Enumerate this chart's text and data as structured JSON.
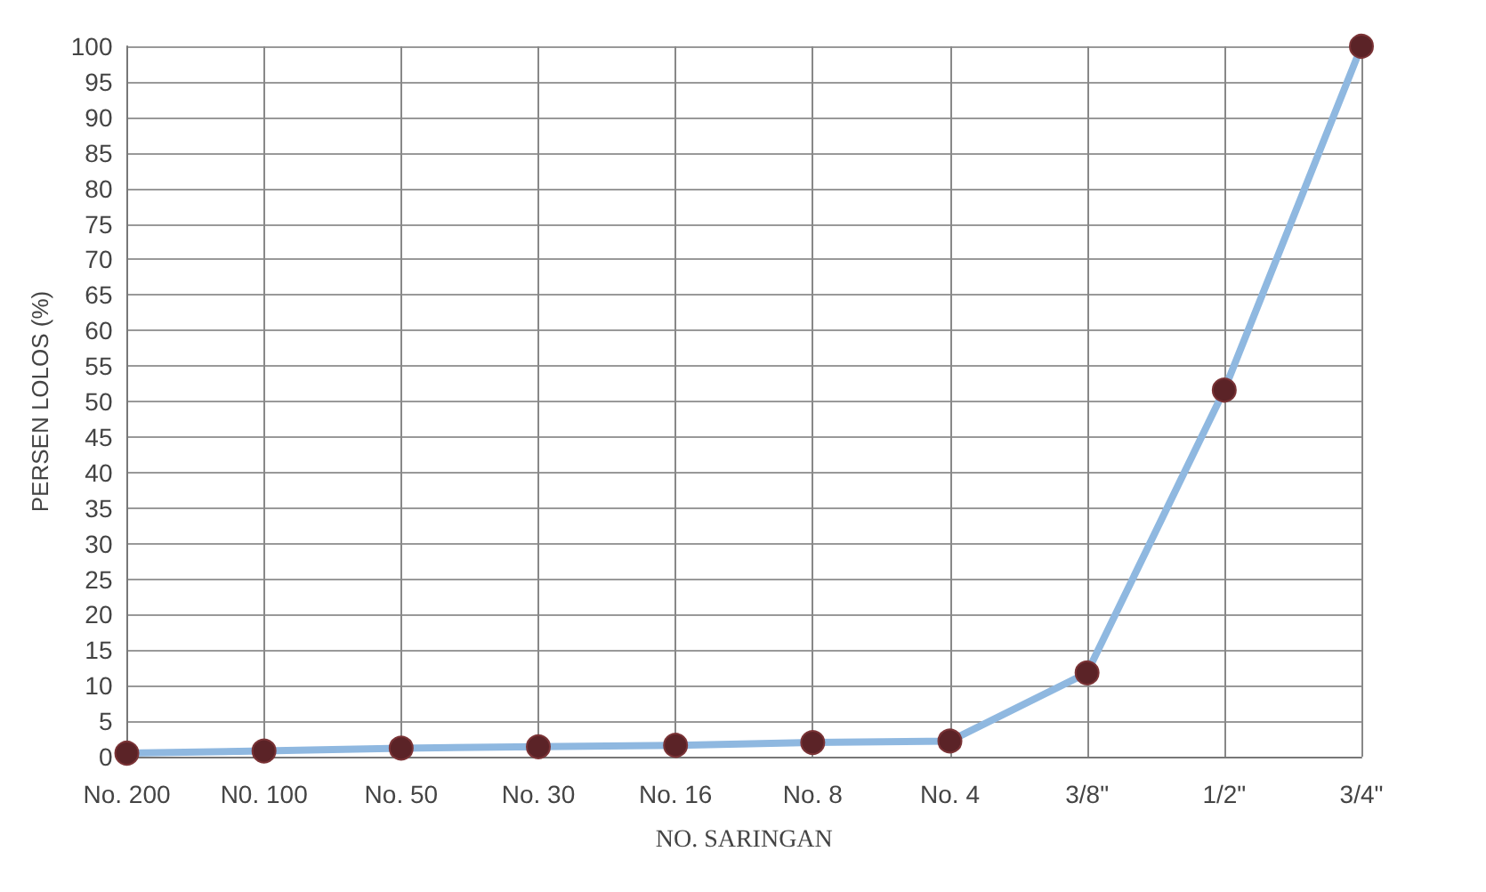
{
  "chart_data": {
    "type": "line",
    "xlabel": "NO. SARINGAN",
    "ylabel": "PERSEN LOLOS (%)",
    "categories": [
      "No. 200",
      "N0. 100",
      "No. 50",
      "No. 30",
      "No. 16",
      "No. 8",
      "No. 4",
      "3/8\"",
      "1/2\"",
      "3/4\""
    ],
    "series": [
      {
        "color": "#8fb8e0",
        "values": [
          0.5,
          0.8,
          1.2,
          1.4,
          1.6,
          2.0,
          2.2,
          11.8,
          51.6,
          100
        ]
      }
    ],
    "ylim": [
      0,
      100
    ],
    "yticks": [
      0,
      5,
      10,
      15,
      20,
      25,
      30,
      35,
      40,
      45,
      50,
      55,
      60,
      65,
      70,
      75,
      80,
      85,
      90,
      95,
      100
    ],
    "grid": true,
    "marker": "circle",
    "line_style": "solid"
  }
}
